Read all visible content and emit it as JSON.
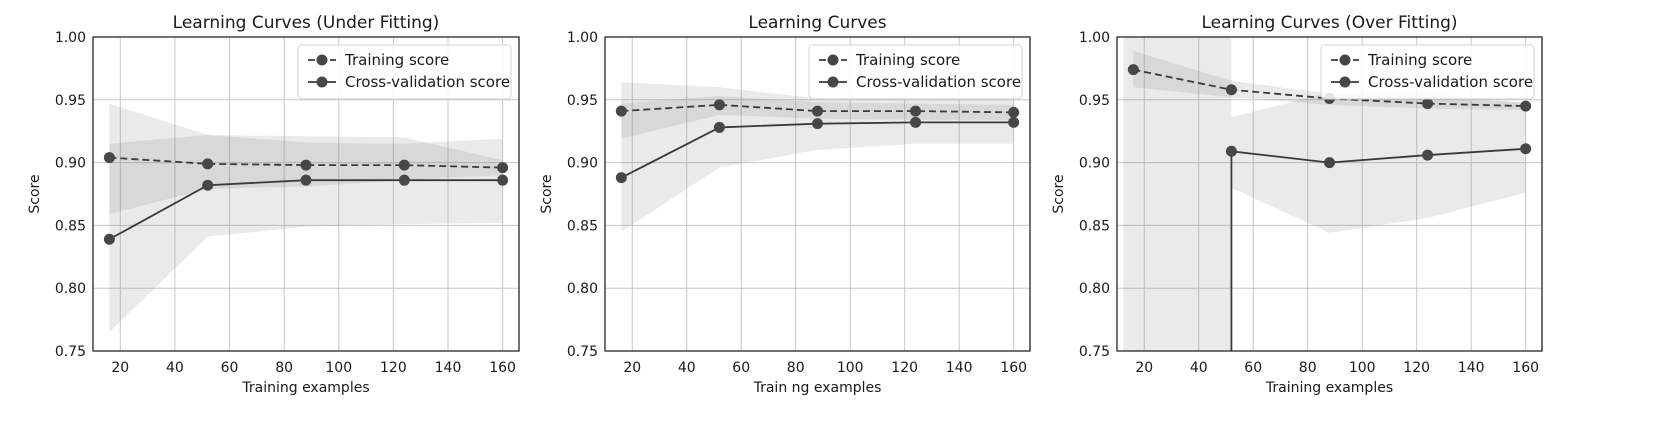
{
  "chart_data": [
    {
      "type": "line",
      "title": "Learning Curves (Under Fitting)",
      "xlabel": "Training examples",
      "ylabel": "Score",
      "xlim": [
        10,
        166
      ],
      "ylim": [
        0.75,
        1.0
      ],
      "xticks": [
        20,
        40,
        60,
        80,
        100,
        120,
        140,
        160
      ],
      "yticks": [
        0.75,
        0.8,
        0.85,
        0.9,
        0.95,
        1.0
      ],
      "grid": true,
      "legend_position": "top-right",
      "x": [
        16,
        52,
        88,
        124,
        160
      ],
      "series": [
        {
          "name": "Training score",
          "style": "dashed",
          "values": [
            0.904,
            0.899,
            0.898,
            0.898,
            0.896
          ],
          "band_low": [
            0.859,
            0.879,
            0.881,
            0.886,
            0.89
          ],
          "band_high": [
            0.915,
            0.922,
            0.921,
            0.92,
            0.902
          ]
        },
        {
          "name": "Cross-validation score",
          "style": "solid",
          "values": [
            0.839,
            0.882,
            0.886,
            0.886,
            0.886
          ],
          "band_low": [
            0.765,
            0.841,
            0.849,
            0.851,
            0.852
          ],
          "band_high": [
            0.947,
            0.922,
            0.916,
            0.915,
            0.919
          ]
        }
      ]
    },
    {
      "type": "line",
      "title": "Learning Curves",
      "xlabel": "Train ng examples",
      "ylabel": "Score",
      "xlim": [
        10,
        166
      ],
      "ylim": [
        0.75,
        1.0
      ],
      "xticks": [
        20,
        40,
        60,
        80,
        100,
        120,
        140,
        160
      ],
      "yticks": [
        0.75,
        0.8,
        0.85,
        0.9,
        0.95,
        1.0
      ],
      "grid": true,
      "legend_position": "top-right",
      "x": [
        16,
        52,
        88,
        124,
        160
      ],
      "series": [
        {
          "name": "Training score",
          "style": "dashed",
          "values": [
            0.941,
            0.946,
            0.941,
            0.941,
            0.94
          ],
          "band_low": [
            0.919,
            0.938,
            0.935,
            0.934,
            0.934
          ],
          "band_high": [
            0.947,
            0.953,
            0.948,
            0.947,
            0.946
          ]
        },
        {
          "name": "Cross-validation score",
          "style": "solid",
          "values": [
            0.888,
            0.928,
            0.931,
            0.932,
            0.932
          ],
          "band_low": [
            0.845,
            0.896,
            0.91,
            0.915,
            0.915
          ],
          "band_high": [
            0.964,
            0.96,
            0.951,
            0.95,
            0.951
          ]
        }
      ]
    },
    {
      "type": "line",
      "title": "Learning Curves (Over Fitting)",
      "xlabel": "Training examples",
      "ylabel": "Score",
      "xlim": [
        10,
        166
      ],
      "ylim": [
        0.75,
        1.0
      ],
      "xticks": [
        20,
        40,
        60,
        80,
        100,
        120,
        140,
        160
      ],
      "yticks": [
        0.75,
        0.8,
        0.85,
        0.9,
        0.95,
        1.0
      ],
      "grid": true,
      "legend_position": "top-right",
      "x": [
        16,
        52,
        88,
        124,
        160
      ],
      "series": [
        {
          "name": "Training score",
          "style": "dashed",
          "values": [
            0.974,
            0.958,
            0.951,
            0.947,
            0.945
          ],
          "band_low": [
            0.96,
            0.952,
            0.946,
            0.943,
            0.942
          ],
          "band_high": [
            0.989,
            0.965,
            0.955,
            0.951,
            0.948
          ]
        },
        {
          "name": "Cross-validation score",
          "style": "solid",
          "x": [
            52,
            88,
            124,
            160
          ],
          "values": [
            0.909,
            0.9,
            0.906,
            0.911
          ],
          "band_low": [
            0.88,
            0.844,
            0.856,
            0.876
          ],
          "band_high": [
            0.936,
            0.956,
            0.956,
            0.947
          ]
        }
      ]
    }
  ]
}
